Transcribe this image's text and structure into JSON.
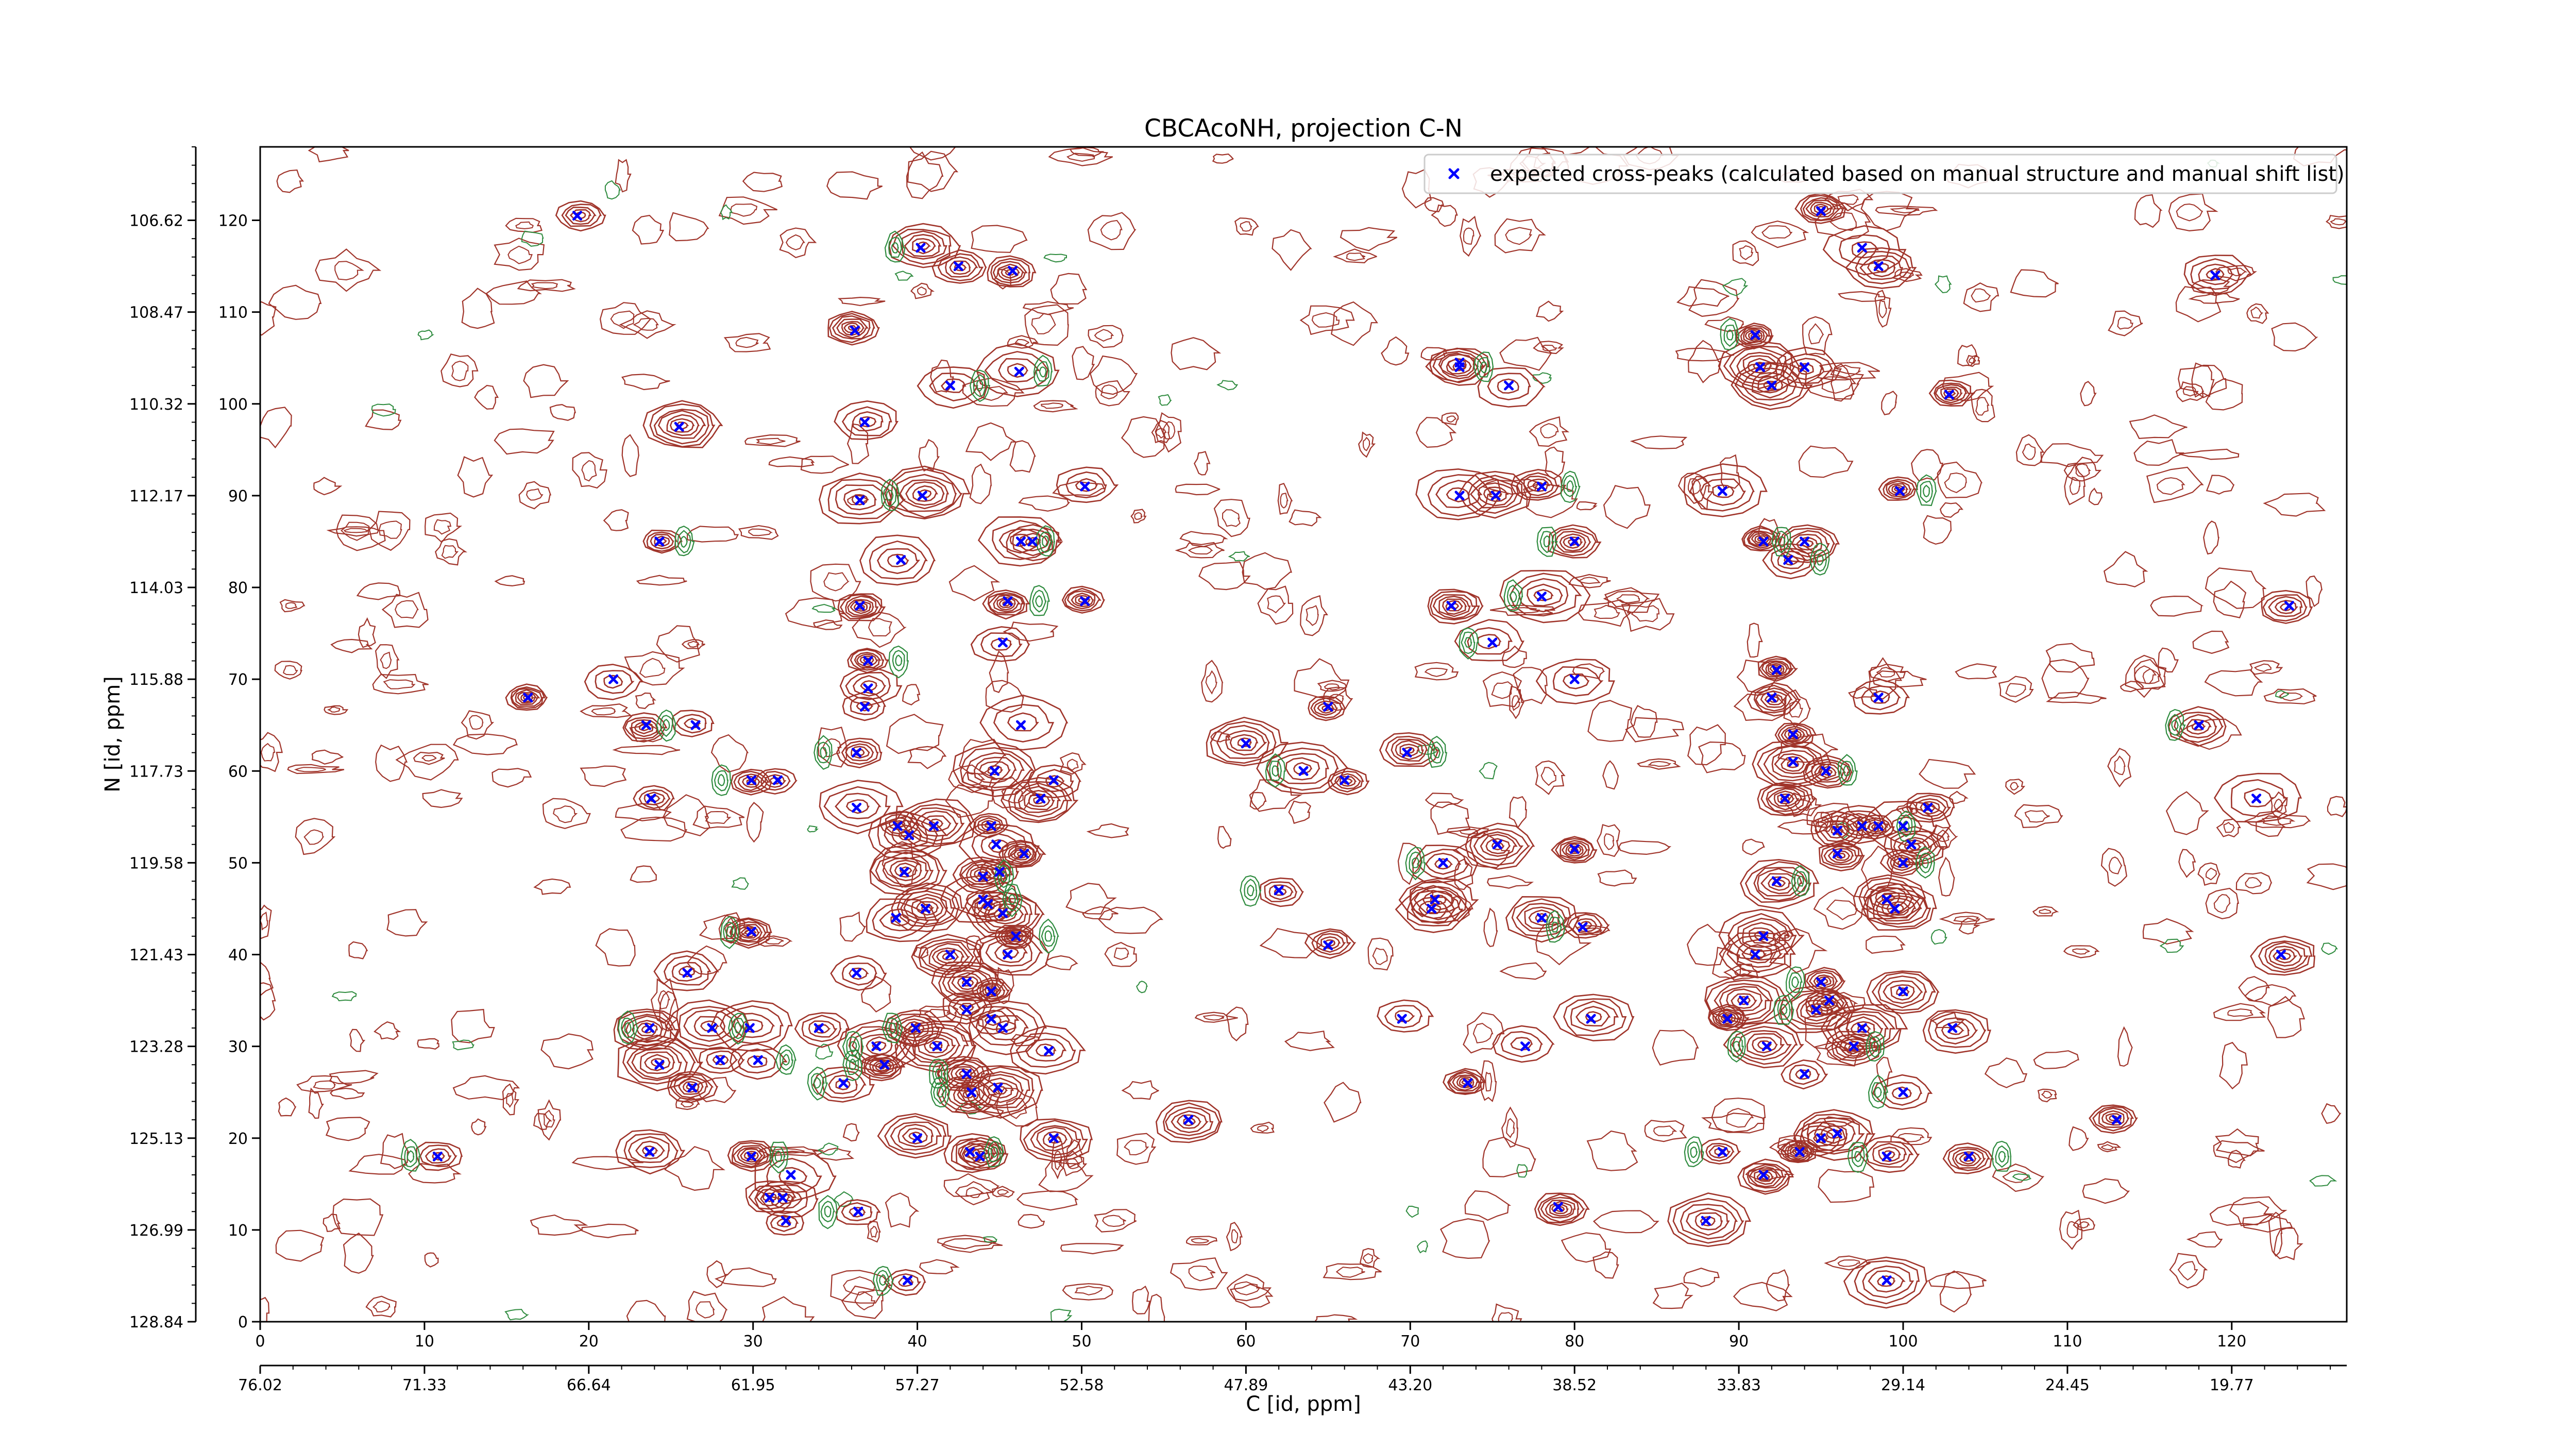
{
  "chart_data": {
    "type": "scatter",
    "title": "CBCAcoNH, projection C-N",
    "xlabel": "C [id, ppm]",
    "ylabel": "N [id, ppm]",
    "xlim": [
      0,
      127
    ],
    "ylim": [
      0,
      128
    ],
    "x_ticks_index": [
      0,
      10,
      20,
      30,
      40,
      50,
      60,
      70,
      80,
      90,
      100,
      110,
      120
    ],
    "x_ticks_ppm": [
      "76.02",
      "71.33",
      "66.64",
      "61.95",
      "57.27",
      "52.58",
      "47.89",
      "43.20",
      "38.52",
      "33.83",
      "29.14",
      "24.45",
      "19.77"
    ],
    "y_ticks_index": [
      0,
      10,
      20,
      30,
      40,
      50,
      60,
      70,
      80,
      90,
      100,
      110,
      120
    ],
    "y_ticks_ppm": [
      "128.84",
      "126.99",
      "125.13",
      "123.28",
      "121.43",
      "119.58",
      "117.73",
      "115.88",
      "114.03",
      "112.17",
      "110.32",
      "108.47",
      "106.62"
    ],
    "grid": false,
    "legend_position": "top-right",
    "marker_color": "#0000ff",
    "contour_positive_color": "#a0342a",
    "contour_negative_color": "#2e8b3e",
    "series": [
      {
        "name": "expected cross-peaks (calculated based on manual structure and manual shift list)",
        "marker": "x",
        "points": [
          [
            19.3,
            120.5
          ],
          [
            40.2,
            117.0
          ],
          [
            42.5,
            115.0
          ],
          [
            45.8,
            114.5
          ],
          [
            36.2,
            108.0
          ],
          [
            36.8,
            98.0
          ],
          [
            42.0,
            102.0
          ],
          [
            46.2,
            103.5
          ],
          [
            25.5,
            97.5
          ],
          [
            24.3,
            85.0
          ],
          [
            36.5,
            89.5
          ],
          [
            40.3,
            90.0
          ],
          [
            50.2,
            91.0
          ],
          [
            46.3,
            85.0
          ],
          [
            47.0,
            85.0
          ],
          [
            39.0,
            83.0
          ],
          [
            36.5,
            78.0
          ],
          [
            45.5,
            78.5
          ],
          [
            50.2,
            78.5
          ],
          [
            45.2,
            74.0
          ],
          [
            16.3,
            68.0
          ],
          [
            21.5,
            70.0
          ],
          [
            23.5,
            65.0
          ],
          [
            26.5,
            65.0
          ],
          [
            37.0,
            72.0
          ],
          [
            37.0,
            69.0
          ],
          [
            36.8,
            67.0
          ],
          [
            46.3,
            65.0
          ],
          [
            36.3,
            62.0
          ],
          [
            44.7,
            60.0
          ],
          [
            48.3,
            59.0
          ],
          [
            29.9,
            59.0
          ],
          [
            31.5,
            59.0
          ],
          [
            23.8,
            57.0
          ],
          [
            36.3,
            56.0
          ],
          [
            47.5,
            57.0
          ],
          [
            38.8,
            54.0
          ],
          [
            39.5,
            53.0
          ],
          [
            41.0,
            54.0
          ],
          [
            44.5,
            54.0
          ],
          [
            44.8,
            52.0
          ],
          [
            46.5,
            51.0
          ],
          [
            39.2,
            49.0
          ],
          [
            44.0,
            48.5
          ],
          [
            45.0,
            49.0
          ],
          [
            44.0,
            46.0
          ],
          [
            44.3,
            45.5
          ],
          [
            45.2,
            44.5
          ],
          [
            40.5,
            45.0
          ],
          [
            38.7,
            44.0
          ],
          [
            46.0,
            42.0
          ],
          [
            29.9,
            42.5
          ],
          [
            26.0,
            38.0
          ],
          [
            36.3,
            38.0
          ],
          [
            42.0,
            40.0
          ],
          [
            45.5,
            40.0
          ],
          [
            44.5,
            36.0
          ],
          [
            43.0,
            34.0
          ],
          [
            44.5,
            33.0
          ],
          [
            45.2,
            32.0
          ],
          [
            43.0,
            37.0
          ],
          [
            34.0,
            32.0
          ],
          [
            37.5,
            30.0
          ],
          [
            39.9,
            32.0
          ],
          [
            23.7,
            32.0
          ],
          [
            27.5,
            32.0
          ],
          [
            29.8,
            32.0
          ],
          [
            24.3,
            28.0
          ],
          [
            28.0,
            28.5
          ],
          [
            30.3,
            28.5
          ],
          [
            26.3,
            25.5
          ],
          [
            38.0,
            28.0
          ],
          [
            41.2,
            30.0
          ],
          [
            43.0,
            27.0
          ],
          [
            48.0,
            29.5
          ],
          [
            35.5,
            26.0
          ],
          [
            43.3,
            25.0
          ],
          [
            44.9,
            25.5
          ],
          [
            40.0,
            20.0
          ],
          [
            43.2,
            18.5
          ],
          [
            43.8,
            18.0
          ],
          [
            48.3,
            20.0
          ],
          [
            10.8,
            18.0
          ],
          [
            23.7,
            18.5
          ],
          [
            29.9,
            18.0
          ],
          [
            31.0,
            13.5
          ],
          [
            31.8,
            13.5
          ],
          [
            32.3,
            16.0
          ],
          [
            32.0,
            11.0
          ],
          [
            36.4,
            12.0
          ],
          [
            39.4,
            4.5
          ],
          [
            73.0,
            104.0
          ],
          [
            76.0,
            102.0
          ],
          [
            75.2,
            90.0
          ],
          [
            78.0,
            91.0
          ],
          [
            73.0,
            90.0
          ],
          [
            80.0,
            85.0
          ],
          [
            72.5,
            78.0
          ],
          [
            78.0,
            79.0
          ],
          [
            75.0,
            74.0
          ],
          [
            80.0,
            70.0
          ],
          [
            65.0,
            67.0
          ],
          [
            69.8,
            62.0
          ],
          [
            60.0,
            63.0
          ],
          [
            63.5,
            60.0
          ],
          [
            66.0,
            59.0
          ],
          [
            72.0,
            50.0
          ],
          [
            75.3,
            52.0
          ],
          [
            71.5,
            46.0
          ],
          [
            71.3,
            45.0
          ],
          [
            80.0,
            51.5
          ],
          [
            62.0,
            47.0
          ],
          [
            65.0,
            41.0
          ],
          [
            78.0,
            44.0
          ],
          [
            80.5,
            43.0
          ],
          [
            69.5,
            33.0
          ],
          [
            81.0,
            33.0
          ],
          [
            73.5,
            26.0
          ],
          [
            77.0,
            30.0
          ],
          [
            56.5,
            22.0
          ],
          [
            73.0,
            104.5
          ],
          [
            79.0,
            12.5
          ],
          [
            91.0,
            107.5
          ],
          [
            91.3,
            104.0
          ],
          [
            92.0,
            102.0
          ],
          [
            94.0,
            104.0
          ],
          [
            102.8,
            101.0
          ],
          [
            95.0,
            121.0
          ],
          [
            97.5,
            117.0
          ],
          [
            98.5,
            115.0
          ],
          [
            89.0,
            90.5
          ],
          [
            99.8,
            90.5
          ],
          [
            91.5,
            85.0
          ],
          [
            93.0,
            83.0
          ],
          [
            94.0,
            85.0
          ],
          [
            92.3,
            71.0
          ],
          [
            92.0,
            68.0
          ],
          [
            98.5,
            68.0
          ],
          [
            93.3,
            64.0
          ],
          [
            93.3,
            61.0
          ],
          [
            92.8,
            57.0
          ],
          [
            95.3,
            60.0
          ],
          [
            96.0,
            53.5
          ],
          [
            97.5,
            54.0
          ],
          [
            98.5,
            54.0
          ],
          [
            100.0,
            54.0
          ],
          [
            100.5,
            52.0
          ],
          [
            100.0,
            50.0
          ],
          [
            101.5,
            56.0
          ],
          [
            96.0,
            51.0
          ],
          [
            92.3,
            48.0
          ],
          [
            99.0,
            46.0
          ],
          [
            99.5,
            45.0
          ],
          [
            91.0,
            40.0
          ],
          [
            91.5,
            42.0
          ],
          [
            95.0,
            37.0
          ],
          [
            95.5,
            35.0
          ],
          [
            100.0,
            36.0
          ],
          [
            89.3,
            33.0
          ],
          [
            90.3,
            35.0
          ],
          [
            94.7,
            34.0
          ],
          [
            97.5,
            32.0
          ],
          [
            91.7,
            30.0
          ],
          [
            97.0,
            30.0
          ],
          [
            103.0,
            32.0
          ],
          [
            100.0,
            25.0
          ],
          [
            89.0,
            18.5
          ],
          [
            91.5,
            16.0
          ],
          [
            93.7,
            18.5
          ],
          [
            94.0,
            27.0
          ],
          [
            95.0,
            20.0
          ],
          [
            96.0,
            20.5
          ],
          [
            99.0,
            18.0
          ],
          [
            88.0,
            11.0
          ],
          [
            99.0,
            4.5
          ],
          [
            104.0,
            18.0
          ],
          [
            119.0,
            114.0
          ],
          [
            123.5,
            78.0
          ],
          [
            118.0,
            65.0
          ],
          [
            121.5,
            57.0
          ],
          [
            113.0,
            22.0
          ],
          [
            123.0,
            40.0
          ]
        ]
      }
    ]
  }
}
